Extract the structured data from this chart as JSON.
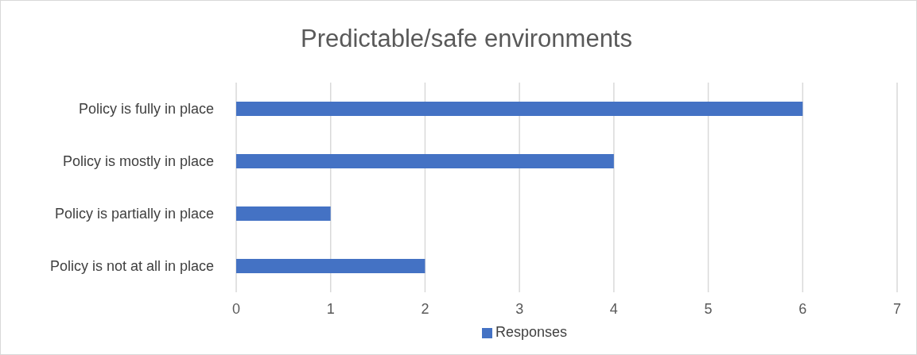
{
  "chart_data": {
    "type": "bar",
    "orientation": "horizontal",
    "title": "Predictable/safe environments",
    "categories": [
      "Policy is fully in place",
      "Policy is mostly in place",
      "Policy is partially in place",
      "Policy is not at all in place"
    ],
    "series": [
      {
        "name": "Responses",
        "color": "#4472c4",
        "values": [
          6,
          4,
          1,
          2
        ]
      }
    ],
    "xlim": [
      0,
      7
    ],
    "xticks": [
      0,
      1,
      2,
      3,
      4,
      5,
      6,
      7
    ],
    "grid": "x",
    "legend": "bottom"
  }
}
